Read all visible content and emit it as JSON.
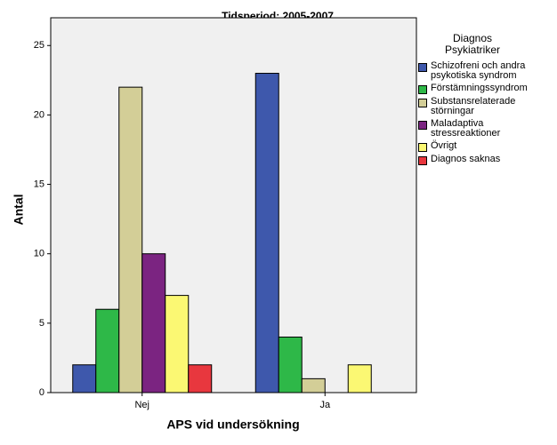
{
  "chart_data": {
    "type": "bar",
    "title": "Tidsperiod: 2005-2007",
    "x_label": "APS vid undersökning",
    "y_label": "Antal",
    "legend_title": "Diagnos Psykiatriker",
    "categories": [
      "Nej",
      "Ja"
    ],
    "series": [
      {
        "name": "Schizofreni och andra psykotiska syndrom",
        "color": "#3e58ac",
        "values": [
          2,
          23
        ]
      },
      {
        "name": "Förstämningssyndrom",
        "color": "#2eb848",
        "values": [
          6,
          4
        ]
      },
      {
        "name": "Substansrelaterade störningar",
        "color": "#d3ce97",
        "values": [
          22,
          1
        ]
      },
      {
        "name": "Maladaptiva stressreaktioner",
        "color": "#7b2481",
        "values": [
          10,
          null
        ]
      },
      {
        "name": "Övrigt",
        "color": "#fbf873",
        "values": [
          7,
          2
        ]
      },
      {
        "name": "Diagnos saknas",
        "color": "#e8373e",
        "values": [
          2,
          null
        ]
      }
    ],
    "ylim": [
      0,
      27
    ],
    "yticks": [
      0,
      5,
      10,
      15,
      20,
      25
    ],
    "legend_position": "right"
  }
}
